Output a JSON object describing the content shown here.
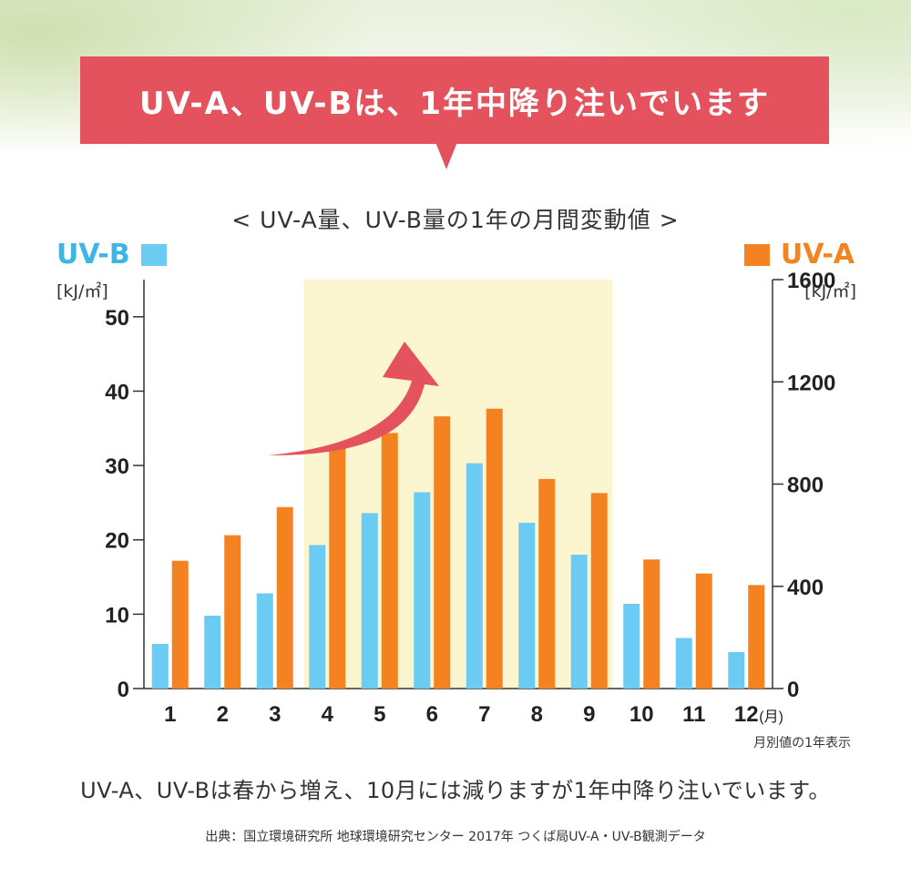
{
  "banner": {
    "title": "UV-A、UV-Bは、1年中降り注いでいます"
  },
  "chart_data": {
    "type": "bar",
    "title": "< UV-A量、UV-B量の1年の月間変動値 >",
    "categories": [
      "1",
      "2",
      "3",
      "4",
      "5",
      "6",
      "7",
      "8",
      "9",
      "10",
      "11",
      "12"
    ],
    "x_unit_suffix": "(月)",
    "series": [
      {
        "name": "UV-B",
        "axis": "left",
        "color": "#6ccbf2",
        "values": [
          6,
          9.8,
          12.8,
          19.3,
          23.6,
          26.4,
          30.3,
          22.3,
          18,
          11.4,
          6.8,
          4.9
        ]
      },
      {
        "name": "UV-A",
        "axis": "right",
        "color": "#f58220",
        "values": [
          500,
          600,
          710,
          940,
          1000,
          1065,
          1095,
          820,
          765,
          505,
          450,
          405
        ]
      }
    ],
    "y_left": {
      "label": "[kJ/㎡]",
      "ylim": [
        0,
        55
      ],
      "ticks": [
        0,
        10,
        20,
        30,
        40,
        50
      ]
    },
    "y_right": {
      "label": "[kJ/㎡]",
      "ylim": [
        0,
        1600
      ],
      "ticks": [
        0,
        400,
        800,
        1200,
        1600
      ]
    },
    "highlight_range": [
      "4",
      "9"
    ],
    "highlight_color": "#fbf6cf",
    "arrow_color": "#e4535d",
    "legend": {
      "left": "UV-B",
      "right": "UV-A"
    },
    "note": "月別値の1年表示"
  },
  "summary": "UV-A、UV-Bは春から増え、10月には減りますが1年中降り注いでいます。",
  "source": "出典：国立環境研究所 地球環境研究センター 2017年 つくば局UV-A・UV-B観測データ"
}
